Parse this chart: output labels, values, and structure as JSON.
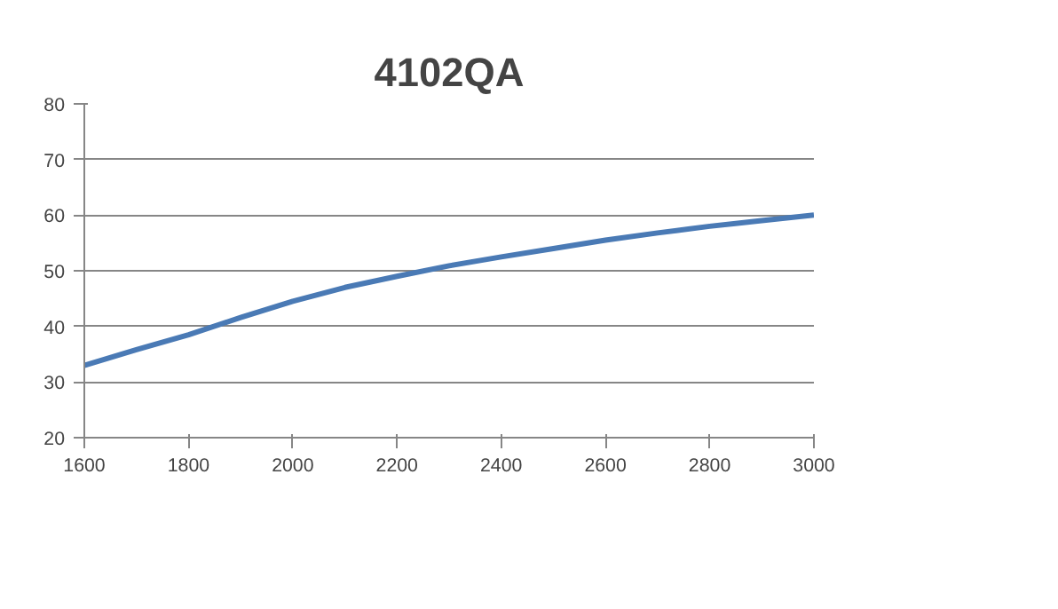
{
  "chart_data": {
    "type": "line",
    "title": "4102QA",
    "x": [
      1600,
      1700,
      1800,
      1900,
      2000,
      2100,
      2200,
      2300,
      2400,
      2500,
      2600,
      2700,
      2800,
      2900,
      3000
    ],
    "series": [
      {
        "color": "#4a7ab5",
        "values": [
          33,
          35.8,
          38.5,
          41.6,
          44.5,
          47,
          49,
          50.9,
          52.5,
          54,
          55.5,
          56.8,
          58,
          59,
          60
        ]
      }
    ],
    "xlim": [
      1600,
      3000
    ],
    "xticks": [
      1600,
      1800,
      2000,
      2200,
      2400,
      2600,
      2800,
      3000
    ],
    "ylim": [
      20,
      80
    ],
    "yticks": [
      20,
      30,
      40,
      50,
      60,
      70,
      80
    ],
    "grid": "y",
    "marker": "none",
    "line_style": "solid"
  }
}
